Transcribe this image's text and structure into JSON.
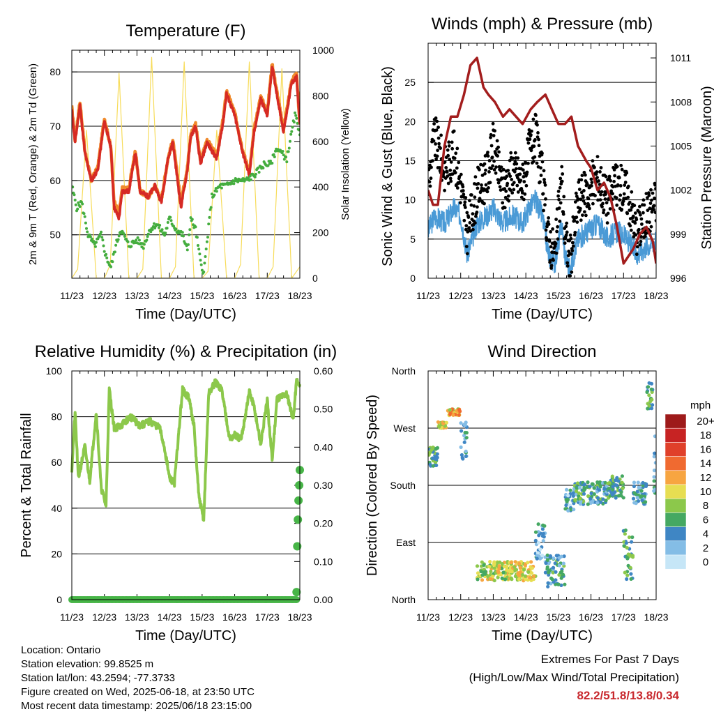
{
  "footer": {
    "location": "Location: Ontario",
    "elevation": "Station elevation: 99.8525 m",
    "latlon": "Station lat/lon: 43.2594; -77.3733",
    "created": "Figure created on Wed, 2025-06-18, at 23:50 UTC",
    "recent": "Most recent data timestamp: 2025/06/18 23:15:00",
    "extremes_title": "Extremes For Past 7 Days",
    "extremes_subtitle": "(High/Low/Max Wind/Total Precipitation)",
    "extremes_values": "82.2/51.8/13.8/0.34"
  },
  "colors": {
    "temp_red": "#d62a24",
    "temp_orange": "#f08a2c",
    "dewpoint_green": "#44ad3e",
    "solar_yellow": "#f7dc5a",
    "wind_blue": "#4a9ad6",
    "gust_black": "#000000",
    "pressure_maroon": "#a31d1d",
    "rh_green": "#8cc84b",
    "precip_green": "#47b547",
    "extremes_red": "#c8282d"
  },
  "chart_data": [
    {
      "type": "line",
      "title": "Temperature (F)",
      "xlabel": "Time (Day/UTC)",
      "ylabel": "2m & 9m T (Red, Orange) & 2m Td (Green)",
      "y2label": "Solar Insolation (Yellow)",
      "x_ticks": [
        "11/23",
        "12/23",
        "13/23",
        "14/23",
        "15/23",
        "16/23",
        "17/23",
        "18/23"
      ],
      "xlim": [
        0,
        7
      ],
      "ylim": [
        42,
        84
      ],
      "y_ticks": [
        50,
        60,
        70,
        80
      ],
      "y2lim": [
        0,
        1000
      ],
      "y2_ticks": [
        0,
        200,
        400,
        600,
        800,
        1000
      ],
      "grid": "horizontal",
      "series": [
        {
          "key": "t2m",
          "color": "#d62a24",
          "x": [
            0,
            0.1,
            0.25,
            0.4,
            0.6,
            0.8,
            1.0,
            1.2,
            1.3,
            1.45,
            1.55,
            1.75,
            1.95,
            2.1,
            2.35,
            2.55,
            2.75,
            2.95,
            3.1,
            3.35,
            3.55,
            3.65,
            3.8,
            3.95,
            4.15,
            4.45,
            4.65,
            4.75,
            5.0,
            5.25,
            5.45,
            5.6,
            5.8,
            6.0,
            6.15,
            6.35,
            6.5,
            6.75,
            6.9,
            7.0
          ],
          "values": [
            73,
            67,
            74,
            65,
            60,
            62,
            71,
            66,
            55,
            53,
            58,
            58,
            65,
            58,
            57,
            59,
            56,
            64,
            67,
            55,
            62,
            68,
            70,
            63,
            67,
            64,
            71,
            76,
            72,
            65,
            61,
            69,
            75,
            72,
            81,
            74,
            69,
            78,
            79,
            70
          ]
        },
        {
          "key": "t9m",
          "color": "#f08a2c",
          "x": [
            0,
            0.1,
            0.25,
            0.4,
            0.6,
            0.8,
            1.0,
            1.2,
            1.3,
            1.45,
            1.55,
            1.75,
            1.95,
            2.1,
            2.35,
            2.55,
            2.75,
            2.95,
            3.1,
            3.35,
            3.55,
            3.65,
            3.8,
            3.95,
            4.15,
            4.45,
            4.65,
            4.75,
            5.0,
            5.25,
            5.45,
            5.6,
            5.8,
            6.0,
            6.15,
            6.35,
            6.5,
            6.75,
            6.9,
            7.0
          ],
          "values": [
            73.5,
            67.5,
            74.5,
            65.5,
            60,
            62.5,
            71.5,
            66,
            56,
            54,
            58.5,
            58.5,
            65.5,
            58,
            57,
            59,
            56.5,
            64,
            67.5,
            56,
            62.5,
            68.5,
            70.5,
            63.5,
            67.5,
            64.5,
            71.5,
            76.5,
            72.5,
            65.5,
            61.5,
            69.5,
            75.5,
            72.5,
            81.5,
            74.5,
            69.5,
            78.5,
            79.5,
            70.5
          ]
        },
        {
          "key": "td2m",
          "color": "#44ad3e",
          "x": [
            0,
            0.15,
            0.3,
            0.5,
            0.7,
            0.9,
            1.05,
            1.2,
            1.35,
            1.5,
            1.75,
            2.0,
            2.2,
            2.4,
            2.6,
            2.85,
            3.0,
            3.2,
            3.4,
            3.55,
            3.65,
            3.8,
            3.95,
            4.05,
            4.3,
            4.55,
            4.75,
            5.0,
            5.35,
            5.6,
            5.9,
            6.1,
            6.3,
            6.6,
            6.85,
            7.0
          ],
          "values": [
            59,
            55,
            56,
            50,
            48,
            50,
            46,
            44,
            48,
            51,
            48,
            49,
            48,
            51,
            52,
            50,
            53,
            51,
            50,
            47,
            53,
            51,
            45,
            43,
            57,
            59,
            59,
            60,
            60,
            61,
            63,
            63,
            66,
            64,
            72,
            69
          ]
        },
        {
          "key": "solar",
          "color": "#f7dc5a",
          "axis": "y2",
          "x": [
            0,
            0.18,
            0.45,
            0.75,
            1.0,
            1.18,
            1.45,
            1.75,
            2.0,
            2.18,
            2.45,
            2.75,
            3.0,
            3.18,
            3.45,
            3.75,
            4.0,
            4.18,
            4.45,
            4.75,
            5.0,
            5.18,
            5.45,
            5.75,
            6.0,
            6.18,
            6.45,
            6.75,
            7.0
          ],
          "values": [
            0,
            40,
            650,
            0,
            0,
            60,
            900,
            0,
            0,
            40,
            970,
            0,
            0,
            50,
            950,
            0,
            0,
            30,
            650,
            0,
            0,
            60,
            950,
            0,
            0,
            50,
            920,
            0,
            50
          ]
        }
      ]
    },
    {
      "type": "scatter",
      "title": "Winds (mph) & Pressure (mb)",
      "xlabel": "Time (Day/UTC)",
      "ylabel": "Sonic Wind & Gust (Blue, Black)",
      "y2label": "Station Pressure (Maroon)",
      "x_ticks": [
        "11/23",
        "12/23",
        "13/23",
        "14/23",
        "15/23",
        "16/23",
        "17/23",
        "18/23"
      ],
      "xlim": [
        0,
        7
      ],
      "ylim": [
        0,
        30
      ],
      "y_ticks": [
        0,
        5,
        10,
        15,
        20,
        25
      ],
      "y2lim": [
        996,
        1012
      ],
      "y2_ticks": [
        996,
        999,
        1002,
        1005,
        1008,
        1011
      ],
      "grid": "horizontal",
      "series": [
        {
          "key": "wind",
          "color": "#4a9ad6",
          "x": [
            0,
            0.2,
            0.5,
            0.8,
            1.0,
            1.2,
            1.5,
            1.8,
            2.0,
            2.3,
            2.6,
            2.9,
            3.1,
            3.3,
            3.5,
            3.7,
            3.9,
            4.1,
            4.2,
            4.35,
            4.6,
            4.9,
            5.2,
            5.5,
            5.8,
            6.1,
            6.4,
            6.7,
            7.0
          ],
          "values": [
            6,
            8,
            7,
            9,
            8,
            3,
            7,
            8,
            9,
            7,
            8,
            7,
            9,
            10,
            8,
            3,
            2,
            7,
            3,
            1,
            5,
            6,
            7,
            5,
            6,
            5,
            3,
            4,
            5
          ]
        },
        {
          "key": "gust",
          "color": "#000000",
          "x": [
            0,
            0.2,
            0.5,
            0.8,
            1.0,
            1.2,
            1.5,
            1.8,
            2.0,
            2.3,
            2.6,
            2.9,
            3.1,
            3.3,
            3.5,
            3.7,
            3.9,
            4.1,
            4.2,
            4.35,
            4.6,
            4.9,
            5.2,
            5.5,
            5.8,
            6.1,
            6.4,
            6.7,
            7.0
          ],
          "values": [
            12,
            18,
            14,
            16,
            12,
            6,
            11,
            13,
            17,
            11,
            14,
            12,
            16,
            18,
            13,
            5,
            3,
            13,
            6,
            2,
            10,
            11,
            13,
            10,
            12,
            11,
            6,
            8,
            10
          ]
        },
        {
          "key": "pressure",
          "color": "#a31d1d",
          "axis": "y2",
          "line": true,
          "x": [
            0,
            0.15,
            0.3,
            0.5,
            0.7,
            0.9,
            1.1,
            1.3,
            1.5,
            1.7,
            1.85,
            2.05,
            2.3,
            2.5,
            2.7,
            2.9,
            3.15,
            3.35,
            3.6,
            3.8,
            4.0,
            4.2,
            4.4,
            4.6,
            4.85,
            5.0,
            5.2,
            5.4,
            5.6,
            5.8,
            6.0,
            6.15,
            6.3,
            6.5,
            6.7,
            6.9,
            7.0
          ],
          "values": [
            1002,
            1001,
            1001,
            1005,
            1007,
            1007,
            1008.5,
            1010.5,
            1011,
            1009,
            1008.5,
            1008,
            1007,
            1007.5,
            1007,
            1006.5,
            1007.5,
            1008,
            1008.5,
            1007.5,
            1006.5,
            1006.5,
            1007,
            1005,
            1004,
            1003.5,
            1002,
            1002.5,
            1001.5,
            999.5,
            997,
            997.5,
            998,
            999,
            999.5,
            998.5,
            997
          ]
        }
      ]
    },
    {
      "type": "line",
      "title": "Relative Humidity (%) & Precipitation (in)",
      "xlabel": "Time (Day/UTC)",
      "ylabel": "Percent & Total Rainfall",
      "x_ticks": [
        "11/23",
        "12/23",
        "13/23",
        "14/23",
        "15/23",
        "16/23",
        "17/23",
        "18/23"
      ],
      "xlim": [
        0,
        7
      ],
      "ylim": [
        0,
        100
      ],
      "y_ticks": [
        0,
        20,
        40,
        60,
        80,
        100
      ],
      "y2lim": [
        0,
        0.6
      ],
      "y2_ticks": [
        "0.00",
        "0.10",
        "0.20",
        "0.30",
        "0.40",
        "0.50",
        "0.60"
      ],
      "grid": "horizontal",
      "series": [
        {
          "key": "rh",
          "color": "#8cc84b",
          "x": [
            0,
            0.1,
            0.2,
            0.4,
            0.55,
            0.75,
            0.9,
            1.05,
            1.15,
            1.3,
            1.5,
            1.8,
            2.1,
            2.4,
            2.7,
            2.85,
            3.0,
            3.15,
            3.4,
            3.6,
            3.75,
            3.9,
            4.05,
            4.2,
            4.4,
            4.6,
            4.85,
            5.0,
            5.2,
            5.45,
            5.6,
            5.8,
            6.0,
            6.15,
            6.3,
            6.6,
            6.8,
            6.9,
            7.0
          ],
          "values": [
            57,
            82,
            53,
            67,
            52,
            82,
            49,
            41,
            92,
            75,
            76,
            80,
            76,
            78,
            75,
            66,
            53,
            51,
            92,
            88,
            76,
            45,
            35,
            90,
            95,
            92,
            70,
            72,
            70,
            91,
            84,
            68,
            87,
            61,
            88,
            90,
            79,
            96,
            93
          ]
        },
        {
          "key": "precip",
          "color": "#47b547",
          "axis": "y2",
          "x": [
            0,
            1,
            2,
            3,
            4,
            5,
            6,
            6.9,
            6.92,
            6.94,
            6.96,
            6.98,
            7.0
          ],
          "values": [
            0,
            0,
            0,
            0,
            0,
            0,
            0,
            0.02,
            0.14,
            0.21,
            0.26,
            0.3,
            0.34
          ]
        }
      ]
    },
    {
      "type": "scatter",
      "title": "Wind Direction",
      "xlabel": "Time (Day/UTC)",
      "ylabel": "Direction (Colored By Speed)",
      "x_ticks": [
        "11/23",
        "12/23",
        "13/23",
        "14/23",
        "15/23",
        "16/23",
        "17/23",
        "18/23"
      ],
      "y_ticks": [
        "North",
        "East",
        "South",
        "West",
        "North"
      ],
      "xlim": [
        0,
        7
      ],
      "ylim": [
        0,
        360
      ],
      "grid": "horizontal",
      "legend_title": "mph",
      "legend_labels": [
        "20+",
        "18",
        "16",
        "14",
        "12",
        "10",
        "8",
        "6",
        "4",
        "2",
        "0"
      ],
      "legend_colors": [
        "#9e1a1a",
        "#c72323",
        "#e0402a",
        "#f06a30",
        "#f7a541",
        "#e7de52",
        "#8cc84b",
        "#45a862",
        "#3f86c4",
        "#84bde6",
        "#c6e6f7"
      ],
      "segments": [
        {
          "x": [
            0,
            0.3
          ],
          "dir": [
            210,
            240
          ],
          "speed": 6
        },
        {
          "x": [
            0.3,
            0.6
          ],
          "dir": [
            270,
            280
          ],
          "speed": 10
        },
        {
          "x": [
            0.6,
            1.0
          ],
          "dir": [
            290,
            300
          ],
          "speed": 11
        },
        {
          "x": [
            1.0,
            1.2
          ],
          "dir": [
            220,
            280
          ],
          "speed": 4
        },
        {
          "x": [
            1.5,
            2.5
          ],
          "dir": [
            30,
            60
          ],
          "speed": 9
        },
        {
          "x": [
            2.5,
            3.3
          ],
          "dir": [
            30,
            60
          ],
          "speed": 10
        },
        {
          "x": [
            3.3,
            3.6
          ],
          "dir": [
            60,
            120
          ],
          "speed": 3
        },
        {
          "x": [
            3.6,
            4.2
          ],
          "dir": [
            20,
            70
          ],
          "speed": 5
        },
        {
          "x": [
            4.2,
            4.5
          ],
          "dir": [
            140,
            175
          ],
          "speed": 3
        },
        {
          "x": [
            4.5,
            5.5
          ],
          "dir": [
            150,
            185
          ],
          "speed": 5
        },
        {
          "x": [
            5.5,
            6.0
          ],
          "dir": [
            160,
            195
          ],
          "speed": 6
        },
        {
          "x": [
            6.0,
            6.3
          ],
          "dir": [
            30,
            110
          ],
          "speed": 6
        },
        {
          "x": [
            6.3,
            6.7
          ],
          "dir": [
            150,
            185
          ],
          "speed": 4
        },
        {
          "x": [
            6.7,
            6.9
          ],
          "dir": [
            300,
            345
          ],
          "speed": 6
        },
        {
          "x": [
            6.9,
            7.0
          ],
          "dir": [
            160,
            260
          ],
          "speed": 4
        }
      ]
    }
  ]
}
